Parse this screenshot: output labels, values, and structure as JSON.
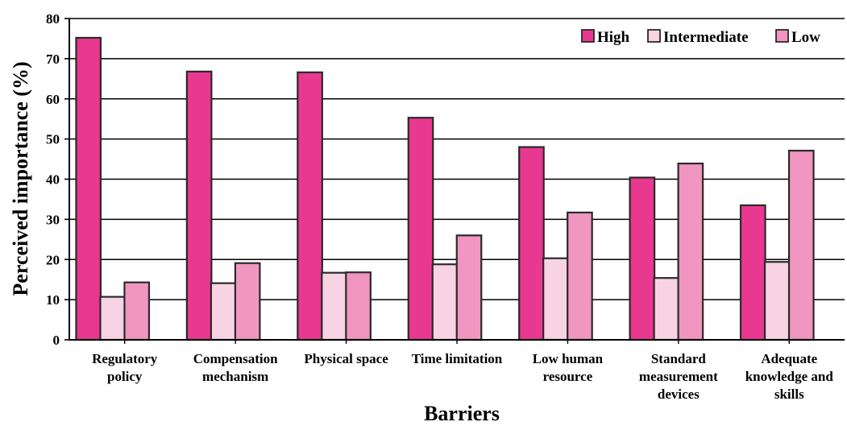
{
  "chart_data": {
    "type": "bar",
    "title": "",
    "xlabel": "Barriers",
    "ylabel": "Perceived importance (%)",
    "ylim": [
      0,
      80
    ],
    "yticks": [
      0,
      10,
      20,
      30,
      40,
      50,
      60,
      70,
      80
    ],
    "grid": "horizontal",
    "legend_position": "top-right",
    "categories": [
      [
        "Regulatory",
        "policy"
      ],
      [
        "Compensation",
        "mechanism"
      ],
      [
        "Physical space"
      ],
      [
        "Time limitation"
      ],
      [
        "Low human",
        "resource"
      ],
      [
        "Standard",
        "measurement",
        "devices"
      ],
      [
        "Adequate",
        "knowledge and",
        "skills"
      ]
    ],
    "series": [
      {
        "name": "High",
        "color": "#e8388f",
        "values": [
          75.2,
          66.8,
          66.6,
          55.3,
          48.0,
          40.4,
          33.5
        ]
      },
      {
        "name": "Intermediate",
        "color": "#f7d3e3",
        "values": [
          10.7,
          14.1,
          16.7,
          18.8,
          20.3,
          15.4,
          19.4
        ]
      },
      {
        "name": "Low",
        "color": "#f096c0",
        "values": [
          14.3,
          19.1,
          16.8,
          26.0,
          31.7,
          43.9,
          47.1
        ]
      }
    ]
  }
}
